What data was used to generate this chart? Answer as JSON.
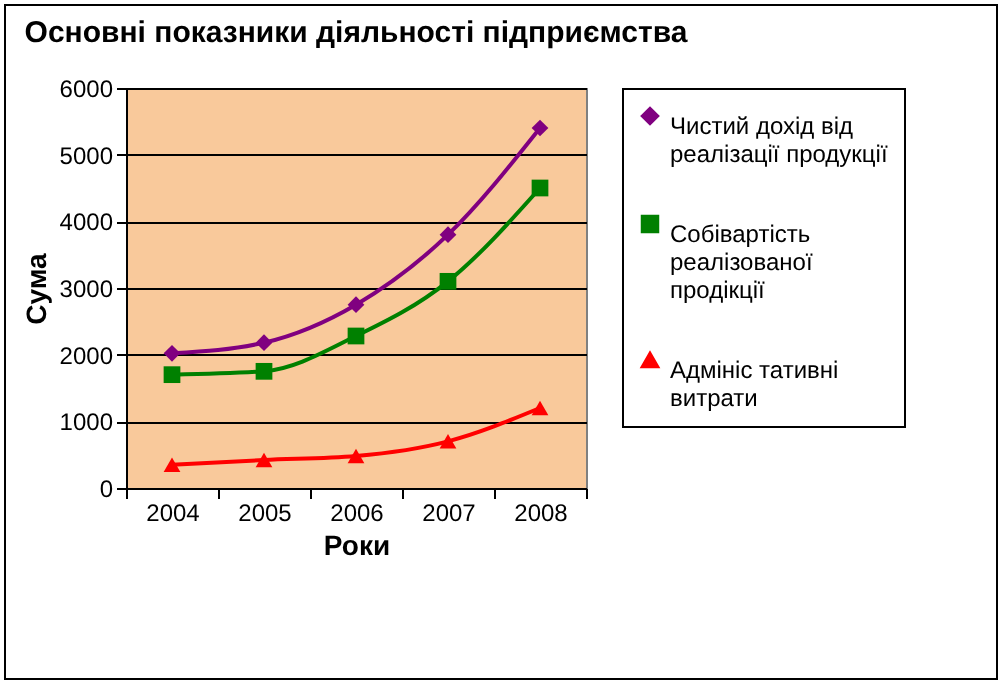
{
  "chart_data": {
    "type": "line",
    "title": "Основні показники діяльності підприємства",
    "xlabel": "Роки",
    "ylabel": "Сума",
    "categories": [
      "2004",
      "2005",
      "2006",
      "2007",
      "2008"
    ],
    "series": [
      {
        "name": "Чистий дохід від реалізації продукції",
        "color": "#800080",
        "marker": "diamond",
        "values": [
          2020,
          2180,
          2750,
          3800,
          5400
        ]
      },
      {
        "name": "Собівартість реалізованої продікції",
        "color": "#008000",
        "marker": "square",
        "values": [
          1700,
          1750,
          2280,
          3100,
          4500
        ]
      },
      {
        "name": "Адмініс тативні витрати",
        "color": "#ff0000",
        "marker": "triangle",
        "values": [
          350,
          420,
          480,
          700,
          1200
        ]
      }
    ],
    "ylim": [
      0,
      6000
    ],
    "yticks": [
      0,
      1000,
      2000,
      3000,
      4000,
      5000,
      6000
    ],
    "grid": "y",
    "legend": "right"
  }
}
